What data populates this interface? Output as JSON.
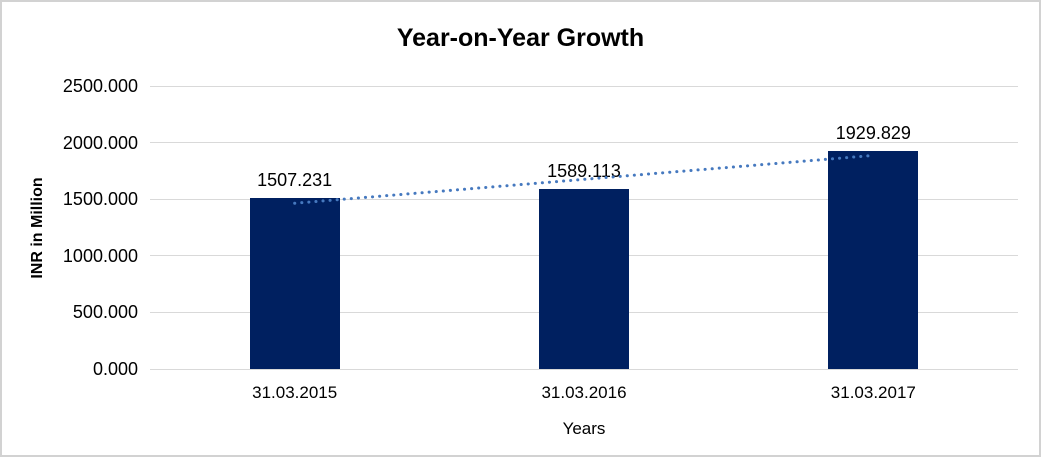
{
  "chart_data": {
    "type": "bar",
    "title": "Year-on-Year Growth",
    "xlabel": "Years",
    "ylabel": "INR in Million",
    "categories": [
      "31.03.2015",
      "31.03.2016",
      "31.03.2017"
    ],
    "values": [
      1507.231,
      1589.113,
      1929.829
    ],
    "value_labels": [
      "1507.231",
      "1589.113",
      "1929.829"
    ],
    "ylim": [
      0,
      2500
    ],
    "y_tick_values": [
      2500,
      2000,
      1500,
      1000,
      500,
      0
    ],
    "y_tick_labels": [
      "2500.000",
      "2000.000",
      "1500.000",
      "1000.000",
      "500.000",
      "0.000"
    ],
    "grid": true,
    "legend": false,
    "trendline": {
      "type": "linear",
      "style": "dotted"
    },
    "colors": {
      "bar": "#002060",
      "trendline": "#4679bf",
      "gridline": "#d9d9d9",
      "text": "#000000",
      "background": "#ffffff",
      "frame_border": "#d2d2d2"
    }
  }
}
